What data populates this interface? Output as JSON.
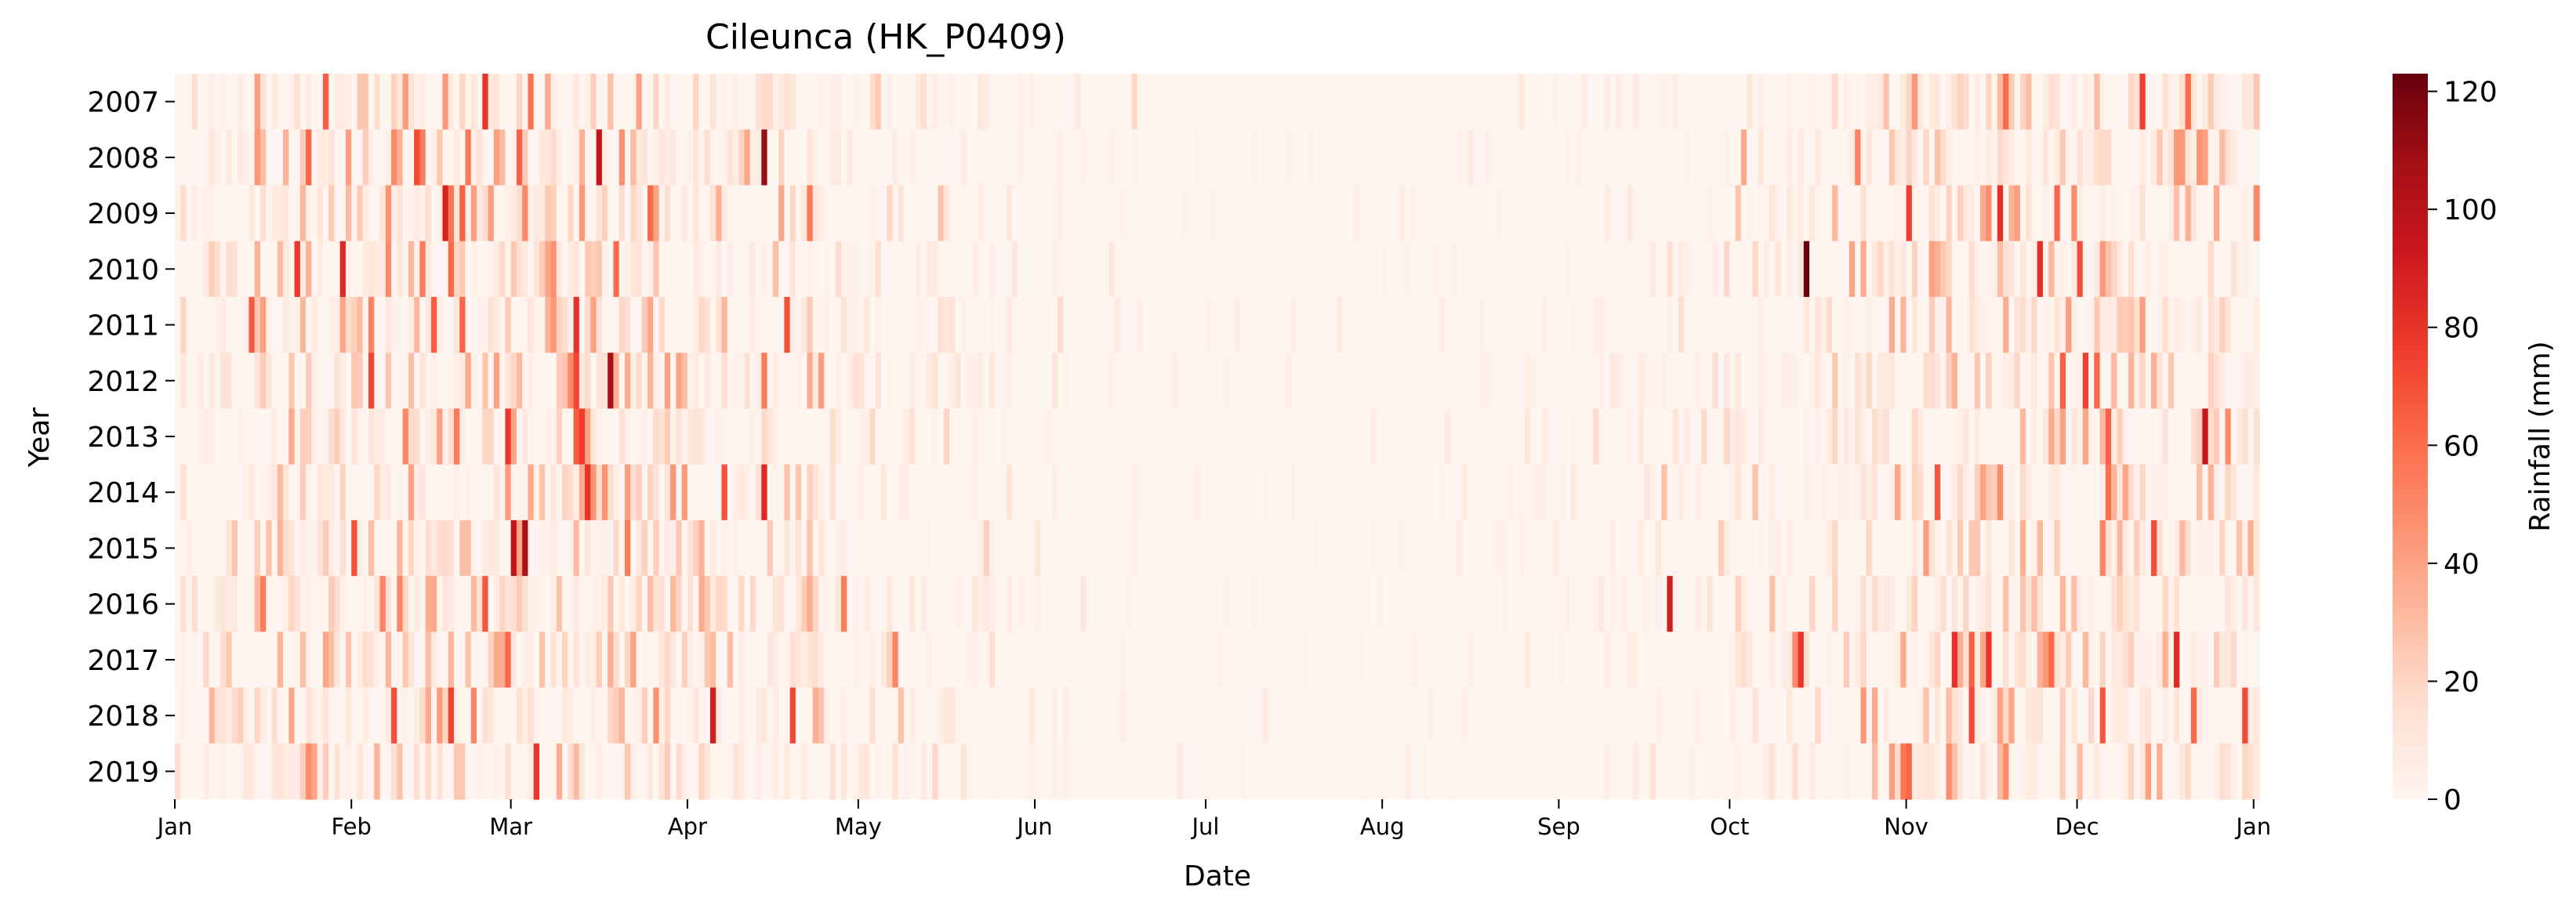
{
  "chart_data": {
    "type": "heatmap",
    "title": "Cileunca (HK_P0409)",
    "xlabel": "Date",
    "ylabel": "Year",
    "years": [
      "2007",
      "2008",
      "2009",
      "2010",
      "2011",
      "2012",
      "2013",
      "2014",
      "2015",
      "2016",
      "2017",
      "2018",
      "2019"
    ],
    "x_ticks": [
      "Jan",
      "Feb",
      "Mar",
      "Apr",
      "May",
      "Jun",
      "Jul",
      "Aug",
      "Sep",
      "Oct",
      "Nov",
      "Dec",
      "Jan"
    ],
    "x_tick_days": [
      0,
      31,
      59,
      90,
      120,
      151,
      181,
      212,
      243,
      273,
      304,
      334,
      365
    ],
    "days_per_year": 366,
    "colorbar": {
      "label": "Rainfall (mm)",
      "min": 0,
      "max": 123,
      "ticks": [
        "0",
        "20",
        "40",
        "60",
        "80",
        "100",
        "120"
      ],
      "colormap": "Reds"
    },
    "seasonal_mean_mm": [
      {
        "day": 0,
        "mean": 8
      },
      {
        "day": 31,
        "mean": 12
      },
      {
        "day": 59,
        "mean": 12
      },
      {
        "day": 90,
        "mean": 11
      },
      {
        "day": 120,
        "mean": 7
      },
      {
        "day": 151,
        "mean": 3
      },
      {
        "day": 181,
        "mean": 1.5
      },
      {
        "day": 212,
        "mean": 1.2
      },
      {
        "day": 243,
        "mean": 2.5
      },
      {
        "day": 273,
        "mean": 5
      },
      {
        "day": 304,
        "mean": 10
      },
      {
        "day": 334,
        "mean": 13
      },
      {
        "day": 365,
        "mean": 10
      }
    ],
    "notable_peaks": [
      {
        "year": "2010",
        "day": 286,
        "value": 123
      },
      {
        "year": "2008",
        "day": 103,
        "value": 110
      },
      {
        "year": "2015",
        "day": 59,
        "value": 98
      },
      {
        "year": "2008",
        "day": 74,
        "value": 95
      },
      {
        "year": "2013",
        "day": 356,
        "value": 95
      },
      {
        "year": "2016",
        "day": 262,
        "value": 90
      },
      {
        "year": "2009",
        "day": 47,
        "value": 88
      },
      {
        "year": "2010",
        "day": 29,
        "value": 85
      },
      {
        "year": "2014",
        "day": 103,
        "value": 85
      },
      {
        "year": "2017",
        "day": 351,
        "value": 85
      },
      {
        "year": "2009",
        "day": 320,
        "value": 82
      },
      {
        "year": "2007",
        "day": 54,
        "value": 80
      },
      {
        "year": "2019",
        "day": 63,
        "value": 80
      },
      {
        "year": "2017",
        "day": 285,
        "value": 80
      },
      {
        "year": "2010",
        "day": 21,
        "value": 78
      },
      {
        "year": "2012",
        "day": 335,
        "value": 75
      },
      {
        "year": "2007",
        "day": 345,
        "value": 75
      },
      {
        "year": "2018",
        "day": 315,
        "value": 72
      },
      {
        "year": "2018",
        "day": 363,
        "value": 72
      },
      {
        "year": "2015",
        "day": 347,
        "value": 70
      },
      {
        "year": "2011",
        "day": 107,
        "value": 70
      },
      {
        "year": "2010",
        "day": 334,
        "value": 70
      },
      {
        "year": "2014",
        "day": 309,
        "value": 68
      },
      {
        "year": "2016",
        "day": 54,
        "value": 68
      },
      {
        "year": "2017",
        "day": 315,
        "value": 65
      }
    ]
  }
}
